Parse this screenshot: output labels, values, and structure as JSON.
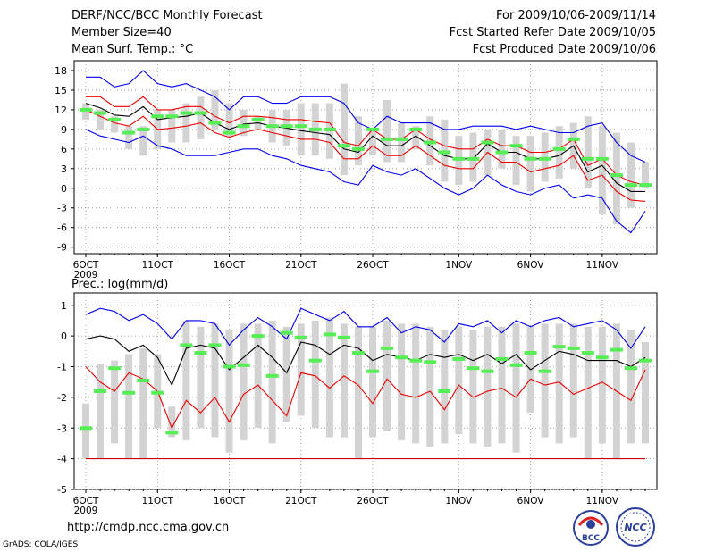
{
  "header": {
    "title": "DERF/NCC/BCC Monthly Forecast",
    "member_size": "Member Size=40",
    "variable": "Mean Surf. Temp.: °C",
    "period": "For 2009/10/06-2009/11/14",
    "refer_date": "Fcst Started Refer Date 2009/10/05",
    "produced_date": "Fcst Produced Date 2009/10/06"
  },
  "footer": {
    "url": "http://cmdp.ncc.cma.gov.cn",
    "grads": "GrADS: COLA/IGES",
    "logos": [
      {
        "icon": "bcc-logo",
        "text": "BCC"
      },
      {
        "icon": "ncc-logo",
        "text": "NCC"
      }
    ]
  },
  "colors": {
    "max_line": "#0000ee",
    "min_line": "#0000ee",
    "spread_line": "#ee0000",
    "mean_line": "#000000",
    "bar": "#d3d3d3",
    "observed": "#55ee55",
    "zero_line": "#cc0000"
  },
  "chart_data": [
    {
      "type": "line",
      "title": "Mean Surf. Temp.: °C",
      "x": [
        "10/06",
        "10/07",
        "10/08",
        "10/09",
        "10/10",
        "10/11",
        "10/12",
        "10/13",
        "10/14",
        "10/15",
        "10/16",
        "10/17",
        "10/18",
        "10/19",
        "10/20",
        "10/21",
        "10/22",
        "10/23",
        "10/24",
        "10/25",
        "10/26",
        "10/27",
        "10/28",
        "10/29",
        "10/30",
        "10/31",
        "11/01",
        "11/02",
        "11/03",
        "11/04",
        "11/05",
        "11/06",
        "11/07",
        "11/08",
        "11/09",
        "11/10",
        "11/11",
        "11/12",
        "11/13",
        "11/14"
      ],
      "xtick_labels": [
        "6OCT\n2009",
        "11OCT",
        "16OCT",
        "21OCT",
        "26OCT",
        "1NOV",
        "6NOV",
        "11NOV"
      ],
      "xtick_index": [
        0,
        5,
        10,
        15,
        20,
        26,
        31,
        36
      ],
      "ylim": [
        -10,
        19.5
      ],
      "yticks": [
        -9,
        -6,
        -3,
        0,
        3,
        6,
        9,
        12,
        15,
        18
      ],
      "series": [
        {
          "name": "max",
          "values": [
            17,
            17,
            15.5,
            16,
            18,
            16,
            15.5,
            16,
            15,
            14,
            12,
            14,
            14,
            13,
            13,
            14,
            14,
            14,
            13,
            10,
            9,
            11,
            10,
            10,
            10,
            9,
            9,
            9.5,
            9.5,
            9.5,
            9,
            9.5,
            9,
            8.5,
            8.5,
            9.5,
            10,
            7,
            5,
            4
          ]
        },
        {
          "name": "upper",
          "values": [
            14,
            14,
            12.5,
            12.5,
            14,
            12,
            12,
            12.5,
            12.5,
            11,
            10,
            11,
            11,
            10.8,
            10.5,
            10.5,
            10.2,
            10,
            7,
            6.5,
            9,
            7.5,
            7.5,
            9,
            7.5,
            6.5,
            6,
            6,
            7.5,
            6.5,
            6.5,
            5.5,
            5.5,
            6,
            7.5,
            3.5,
            4.5,
            2,
            1,
            0.5
          ]
        },
        {
          "name": "mean",
          "values": [
            13,
            12.3,
            11.2,
            11,
            12.5,
            10.5,
            10.8,
            11,
            11.5,
            10,
            9,
            9.8,
            10,
            9.5,
            9.2,
            8.8,
            8.5,
            8.2,
            6,
            5.5,
            8,
            6.5,
            6.5,
            8,
            6.5,
            5,
            4.5,
            4.5,
            6.8,
            5.5,
            5.5,
            4.5,
            4.5,
            5,
            6.5,
            2.5,
            3.5,
            0.8,
            -0.5,
            -0.5
          ]
        },
        {
          "name": "lower",
          "values": [
            12,
            11,
            10,
            9.5,
            11,
            9,
            9.2,
            9.5,
            10,
            8.5,
            7.8,
            8.5,
            9,
            8.5,
            8,
            7.5,
            7.5,
            7,
            4.5,
            4.5,
            6.5,
            5,
            5,
            6.5,
            5,
            3.5,
            3,
            3,
            5.5,
            4,
            4,
            2.5,
            3,
            3.5,
            5,
            1.2,
            2,
            -0.5,
            -1.8,
            -2
          ]
        },
        {
          "name": "min",
          "values": [
            9,
            8,
            7.5,
            7,
            8,
            6.5,
            6,
            5,
            5,
            5,
            5.5,
            6,
            6,
            5,
            4.5,
            3.5,
            3,
            2.5,
            1,
            0.5,
            3.5,
            2.5,
            2,
            3,
            1.5,
            0,
            -1,
            0,
            2,
            0.5,
            -0.5,
            -1,
            0,
            0.5,
            -1.5,
            -1,
            -1.5,
            -5,
            -6.8,
            -3.5
          ]
        },
        {
          "name": "bar_top",
          "values": [
            13,
            12,
            11,
            9.5,
            9.5,
            12,
            12,
            13,
            14,
            15,
            13,
            12,
            11,
            12,
            12,
            13,
            13,
            13,
            16,
            11,
            9,
            13.5,
            10,
            9.5,
            11,
            10.5,
            8,
            8.5,
            9,
            9,
            8,
            8,
            8.5,
            9.5,
            10,
            11,
            9.5,
            8.5,
            7,
            4
          ]
        },
        {
          "name": "bar_bottom",
          "values": [
            10.5,
            9,
            8.5,
            6,
            5,
            6,
            7,
            7,
            7.5,
            9,
            8,
            8,
            9,
            7,
            6.5,
            5,
            5,
            4.5,
            2,
            3.5,
            5,
            4,
            4,
            6,
            3.5,
            1,
            0.5,
            1,
            2,
            3,
            0.5,
            -0.5,
            1,
            1.5,
            3,
            0,
            -4,
            -5.5,
            -3,
            0
          ]
        },
        {
          "name": "observed",
          "values": [
            12,
            11.5,
            10.5,
            8.5,
            9,
            11,
            11,
            11.5,
            11.5,
            10,
            8.5,
            9.5,
            10.5,
            9.5,
            9.5,
            9.5,
            9,
            9,
            6.5,
            6,
            9,
            7.5,
            7.5,
            9,
            7,
            5.5,
            4.5,
            4.5,
            7,
            5.5,
            6.5,
            4.5,
            4.5,
            6,
            7.5,
            4.5,
            4.5,
            2,
            0.5,
            0.5
          ]
        }
      ]
    },
    {
      "type": "line",
      "title": "Prec.: log(mm/d)",
      "x": [
        "10/06",
        "10/07",
        "10/08",
        "10/09",
        "10/10",
        "10/11",
        "10/12",
        "10/13",
        "10/14",
        "10/15",
        "10/16",
        "10/17",
        "10/18",
        "10/19",
        "10/20",
        "10/21",
        "10/22",
        "10/23",
        "10/24",
        "10/25",
        "10/26",
        "10/27",
        "10/28",
        "10/29",
        "10/30",
        "10/31",
        "11/01",
        "11/02",
        "11/03",
        "11/04",
        "11/05",
        "11/06",
        "11/07",
        "11/08",
        "11/09",
        "11/10",
        "11/11",
        "11/12",
        "11/13",
        "11/14"
      ],
      "xtick_labels": [
        "6OCT\n2009",
        "11OCT",
        "16OCT",
        "21OCT",
        "26OCT",
        "1NOV",
        "6NOV",
        "11NOV"
      ],
      "xtick_index": [
        0,
        5,
        10,
        15,
        20,
        26,
        31,
        36
      ],
      "ylim": [
        -5,
        1.4
      ],
      "yticks": [
        -5,
        -4,
        -3,
        -2,
        -1,
        0,
        1
      ],
      "series": [
        {
          "name": "max",
          "values": [
            0.7,
            0.9,
            0.8,
            0.5,
            0.7,
            0.4,
            -0.1,
            0.5,
            0.5,
            0.4,
            -0.3,
            0.2,
            0.6,
            0.3,
            -0.1,
            0.9,
            0.7,
            0.5,
            0.8,
            0.3,
            0.3,
            0.6,
            0.1,
            0.3,
            0.2,
            -0.2,
            0.4,
            0.3,
            0.5,
            0.1,
            0.5,
            0.3,
            0.5,
            0.6,
            0.3,
            0.4,
            0.5,
            0.2,
            -0.4,
            0.3
          ]
        },
        {
          "name": "mean",
          "values": [
            -0.1,
            0,
            -0.1,
            -0.5,
            -0.3,
            -0.7,
            -1.6,
            -0.4,
            -0.3,
            -0.4,
            -1.1,
            -0.7,
            -0.3,
            -0.7,
            -1.2,
            -0.2,
            -0.3,
            -0.6,
            -0.3,
            -0.4,
            -0.8,
            -0.6,
            -0.7,
            -0.8,
            -0.6,
            -0.7,
            -0.6,
            -0.8,
            -0.6,
            -0.9,
            -0.6,
            -1.1,
            -0.8,
            -0.5,
            -0.6,
            -0.8,
            -0.8,
            -0.8,
            -1.0,
            -0.7
          ]
        },
        {
          "name": "low_line",
          "values": [
            -1,
            -1.5,
            -1.8,
            -1.2,
            -1.4,
            -1.8,
            -3,
            -2.1,
            -2.5,
            -2.0,
            -2.8,
            -1.9,
            -1.6,
            -2.1,
            -2.6,
            -1.2,
            -1.3,
            -1.7,
            -1.3,
            -1.6,
            -2.2,
            -1.4,
            -1.9,
            -2.0,
            -1.8,
            -2.4,
            -1.6,
            -2.0,
            -1.8,
            -1.7,
            -2.0,
            -1.4,
            -1.6,
            -1.5,
            -1.9,
            -1.7,
            -1.5,
            -1.8,
            -2.1,
            -1.1
          ]
        },
        {
          "name": "bar_top",
          "values": [
            -2.2,
            -0.9,
            -0.8,
            -0.6,
            -0.4,
            -0.6,
            -2.3,
            0.5,
            0.3,
            0.4,
            0.2,
            0.4,
            0.4,
            0.5,
            0.3,
            0.4,
            0.5,
            0.6,
            0.4,
            0.3,
            0.3,
            0.5,
            0.4,
            0.4,
            0.3,
            0.2,
            0.3,
            0.2,
            0.3,
            0.3,
            0.4,
            0.3,
            0.4,
            0.4,
            0.4,
            0.3,
            0.3,
            0.4,
            0.2,
            -0.2
          ]
        },
        {
          "name": "bar_bottom",
          "values": [
            -4,
            -4,
            -3.5,
            -4,
            -4,
            -3,
            -3.3,
            -3.4,
            -3,
            -3.3,
            -3.8,
            -3.4,
            -3,
            -3.5,
            -2.8,
            -2.6,
            -3,
            -3.3,
            -3.3,
            -4,
            -3.3,
            -3.1,
            -3.4,
            -3.5,
            -3.6,
            -3.5,
            -3.2,
            -3.5,
            -3.6,
            -3.5,
            -3.8,
            -2.5,
            -3.3,
            -3.5,
            -3.3,
            -4,
            -3.5,
            -4,
            -3.5,
            -3.5
          ]
        },
        {
          "name": "observed",
          "values": [
            -3,
            -1.8,
            -1.05,
            -1.85,
            -1.45,
            -1.85,
            -3.15,
            -0.3,
            -0.55,
            -0.3,
            -1,
            -0.95,
            0,
            -1.3,
            0.1,
            -0.05,
            -0.8,
            0.05,
            -0.05,
            -0.55,
            -1.15,
            -0.4,
            -0.7,
            -0.8,
            -0.85,
            -1.8,
            -0.75,
            -1.05,
            -1.15,
            -0.75,
            -0.95,
            -0.55,
            -1.15,
            -0.35,
            -0.4,
            -0.55,
            -0.7,
            -0.45,
            -1.05,
            -0.8
          ]
        },
        {
          "name": "floor",
          "values": [
            -4,
            -4,
            -4,
            -4,
            -4,
            -4,
            -4,
            -4,
            -4,
            -4,
            -4,
            -4,
            -4,
            -4,
            -4,
            -4,
            -4,
            -4,
            -4,
            -4,
            -4,
            -4,
            -4,
            -4,
            -4,
            -4,
            -4,
            -4,
            -4,
            -4,
            -4,
            -4,
            -4,
            -4,
            -4,
            -4,
            -4,
            -4,
            -4,
            -4
          ]
        }
      ]
    }
  ]
}
